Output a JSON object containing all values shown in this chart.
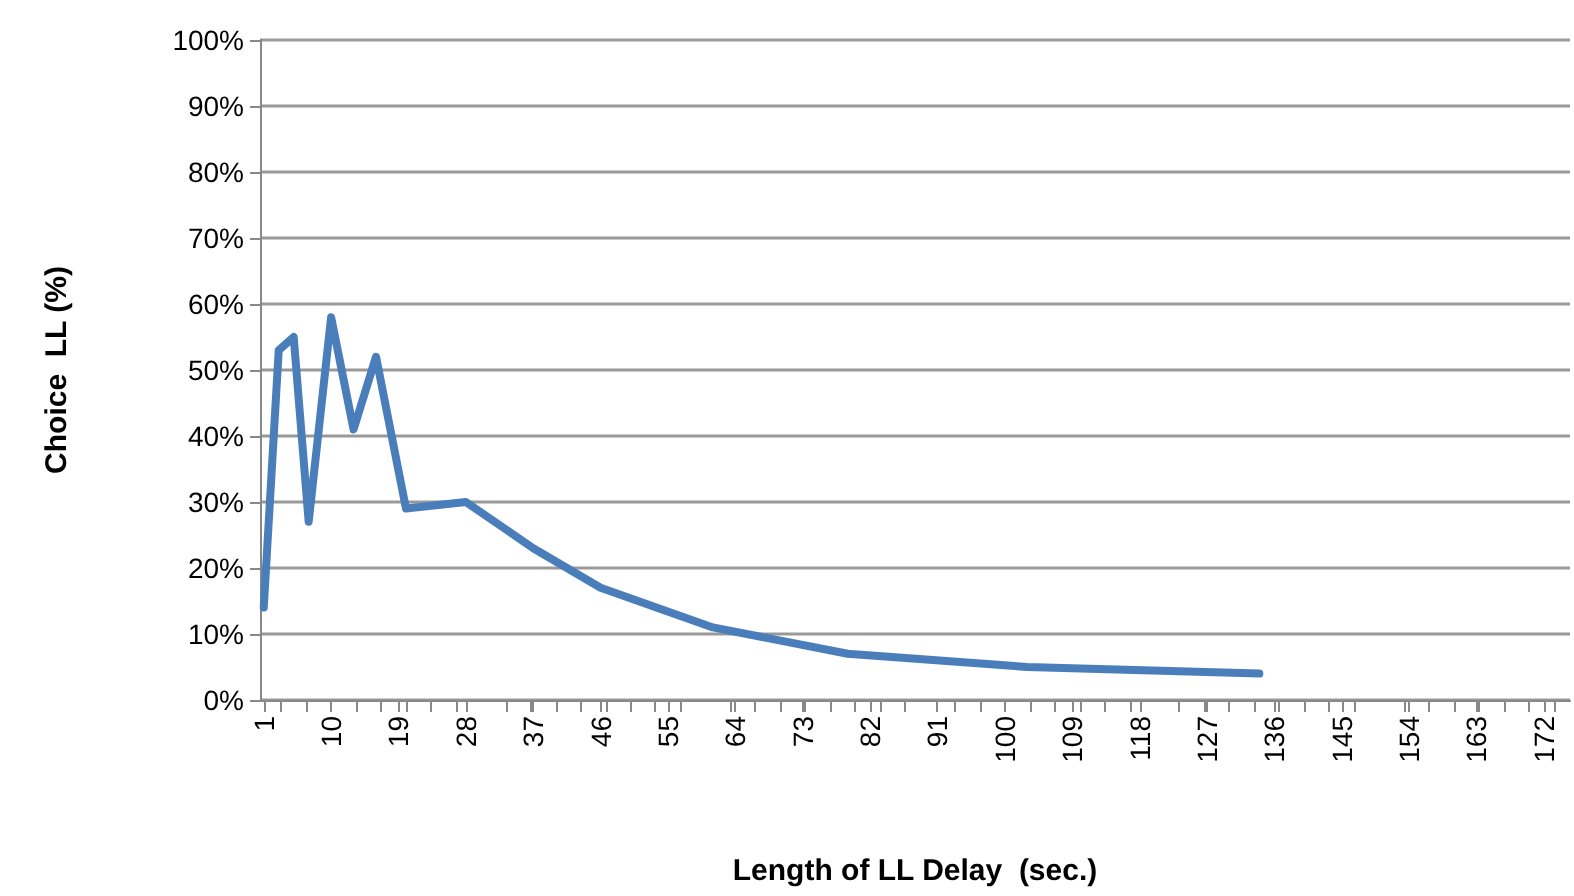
{
  "chart_data": {
    "type": "line",
    "xlabel": "Length of LL Delay  (sec.)",
    "ylabel": "Choice  LL (%)",
    "x": [
      1,
      3,
      5,
      7,
      10,
      13,
      16,
      20,
      28,
      37,
      46,
      61,
      79,
      103,
      134
    ],
    "series": [
      {
        "color": "#4a7ebb",
        "values": [
          14,
          53,
          55,
          27,
          58,
          41,
          52,
          29,
          30,
          23,
          17,
          11,
          7,
          5,
          4
        ]
      }
    ],
    "xlim": [
      0.5,
      175.5
    ],
    "xticks": [
      1,
      10,
      19,
      28,
      37,
      46,
      55,
      64,
      73,
      82,
      91,
      100,
      109,
      118,
      127,
      136,
      145,
      154,
      163,
      172
    ],
    "ylim": [
      0,
      100
    ],
    "yticks": [
      {
        "value": 0,
        "label": "0%"
      },
      {
        "value": 10,
        "label": "10%"
      },
      {
        "value": 20,
        "label": "20%"
      },
      {
        "value": 30,
        "label": "30%"
      },
      {
        "value": 40,
        "label": "40%"
      },
      {
        "value": 50,
        "label": "50%"
      },
      {
        "value": 60,
        "label": "60%"
      },
      {
        "value": 70,
        "label": "70%"
      },
      {
        "value": 80,
        "label": "80%"
      },
      {
        "value": 90,
        "label": "90%"
      },
      {
        "value": 100,
        "label": "100%"
      }
    ],
    "grid": "y",
    "marker": "none",
    "line_style": "solid"
  }
}
